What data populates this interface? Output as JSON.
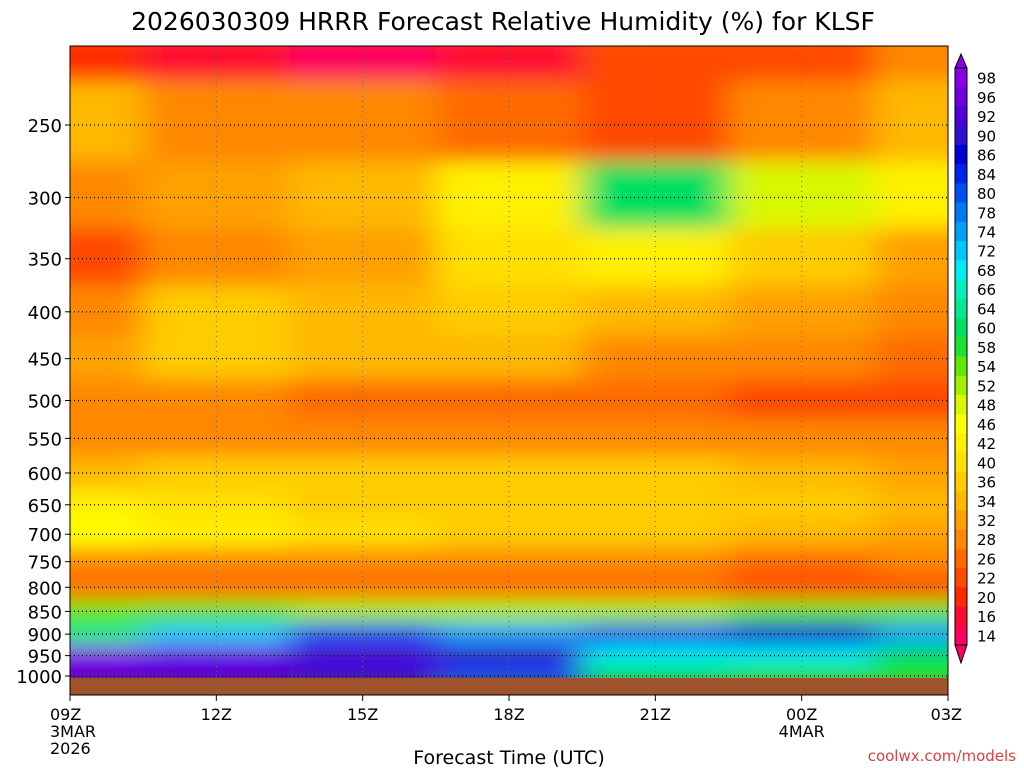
{
  "chart_data": {
    "type": "heatmap",
    "title": "2026030309 HRRR Forecast Relative Humidity (%) for KLSF",
    "xlabel": "Forecast Time (UTC)",
    "ylabel": "",
    "x_ticks": [
      "09Z",
      "12Z",
      "15Z",
      "18Z",
      "21Z",
      "00Z",
      "03Z"
    ],
    "x_sublabels": [
      {
        "tick": "09Z",
        "lines": [
          "3MAR",
          "2026"
        ]
      },
      {
        "tick": "00Z",
        "lines": [
          "4MAR"
        ]
      }
    ],
    "y_ticks": [
      250,
      300,
      350,
      400,
      450,
      500,
      550,
      600,
      650,
      700,
      750,
      800,
      850,
      900,
      950,
      1000
    ],
    "ylim": [
      1030,
      200
    ],
    "y_scale": "log-pressure",
    "grid": true,
    "colorbar": {
      "levels": [
        98,
        96,
        92,
        90,
        86,
        84,
        80,
        78,
        74,
        72,
        68,
        66,
        64,
        60,
        58,
        54,
        52,
        48,
        46,
        42,
        40,
        36,
        34,
        32,
        28,
        26,
        22,
        20,
        16,
        14
      ],
      "colors": [
        "#8a00e6",
        "#6d00e0",
        "#5000d8",
        "#3010d0",
        "#0000d8",
        "#0024e8",
        "#0050f0",
        "#0078f4",
        "#00a0f8",
        "#00c8fc",
        "#00ecf0",
        "#00f0c0",
        "#00e890",
        "#00e060",
        "#20e030",
        "#60e800",
        "#a0f000",
        "#d8f800",
        "#ffff00",
        "#fff000",
        "#ffe000",
        "#ffcc00",
        "#ffb800",
        "#ffa000",
        "#ff8800",
        "#ff6a00",
        "#ff4a00",
        "#ff2a00",
        "#ff0a30",
        "#ff0060"
      ]
    },
    "rh_grid": {
      "times": [
        "09Z",
        "12Z",
        "15Z",
        "18Z",
        "21Z",
        "00Z",
        "03Z"
      ],
      "levels_hpa": [
        200,
        250,
        300,
        350,
        400,
        450,
        500,
        550,
        600,
        650,
        700,
        750,
        800,
        850,
        900,
        950,
        1000
      ],
      "values": [
        [
          20,
          18,
          14,
          16,
          22,
          24,
          30
        ],
        [
          34,
          30,
          28,
          26,
          24,
          30,
          34
        ],
        [
          28,
          32,
          34,
          44,
          62,
          50,
          42
        ],
        [
          24,
          30,
          32,
          40,
          44,
          38,
          32
        ],
        [
          30,
          36,
          34,
          38,
          34,
          32,
          28
        ],
        [
          32,
          38,
          34,
          34,
          30,
          28,
          26
        ],
        [
          28,
          28,
          26,
          26,
          26,
          22,
          24
        ],
        [
          30,
          30,
          30,
          30,
          30,
          28,
          28
        ],
        [
          34,
          36,
          36,
          36,
          36,
          34,
          32
        ],
        [
          44,
          40,
          38,
          36,
          36,
          36,
          34
        ],
        [
          46,
          42,
          40,
          36,
          36,
          34,
          32
        ],
        [
          30,
          28,
          28,
          28,
          28,
          26,
          28
        ],
        [
          26,
          26,
          26,
          26,
          26,
          24,
          24
        ],
        [
          54,
          54,
          52,
          52,
          52,
          56,
          56
        ],
        [
          64,
          72,
          80,
          76,
          82,
          88,
          74
        ],
        [
          98,
          96,
          94,
          90,
          68,
          70,
          62
        ],
        [
          92,
          92,
          90,
          82,
          62,
          58,
          58
        ]
      ]
    }
  },
  "footer": {
    "credit": "coolwx.com/models"
  }
}
